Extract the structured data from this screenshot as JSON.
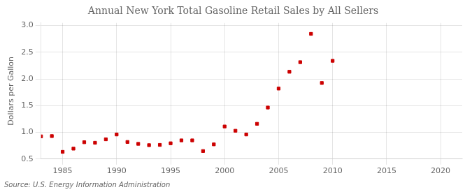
{
  "chart_data": {
    "type": "scatter",
    "title": "Annual New York Total Gasoline Retail Sales by All Sellers",
    "ylabel": "Dollars per Gallon",
    "annotations": [
      "Source: U.S. Energy Information Administration"
    ],
    "color": "#cc0000",
    "marker": "square",
    "grid": true,
    "xlim": [
      1983,
      2022
    ],
    "ylim": [
      0.5,
      3.05
    ],
    "xticks": [
      1985,
      1990,
      1995,
      2000,
      2005,
      2010,
      2015,
      2020
    ],
    "yticks": [
      0.5,
      {
        "value": 1.0,
        "label": "1.0"
      },
      1.5,
      {
        "value": 2.0,
        "label": "2.0"
      },
      2.5,
      {
        "value": 3.0,
        "label": "3.0"
      }
    ],
    "x": [
      1983,
      1984,
      1985,
      1986,
      1987,
      1988,
      1989,
      1990,
      1991,
      1992,
      1993,
      1994,
      1995,
      1996,
      1997,
      1998,
      1999,
      2000,
      2001,
      2002,
      2003,
      2004,
      2005,
      2006,
      2007,
      2008,
      2009,
      2010
    ],
    "values": [
      0.925,
      0.93,
      0.635,
      0.695,
      0.815,
      0.805,
      0.87,
      0.96,
      0.82,
      0.785,
      0.76,
      0.765,
      0.795,
      0.85,
      0.85,
      0.65,
      0.775,
      1.11,
      1.03,
      0.96,
      1.16,
      1.465,
      1.82,
      2.135,
      2.315,
      2.845,
      1.925,
      2.34
    ]
  }
}
